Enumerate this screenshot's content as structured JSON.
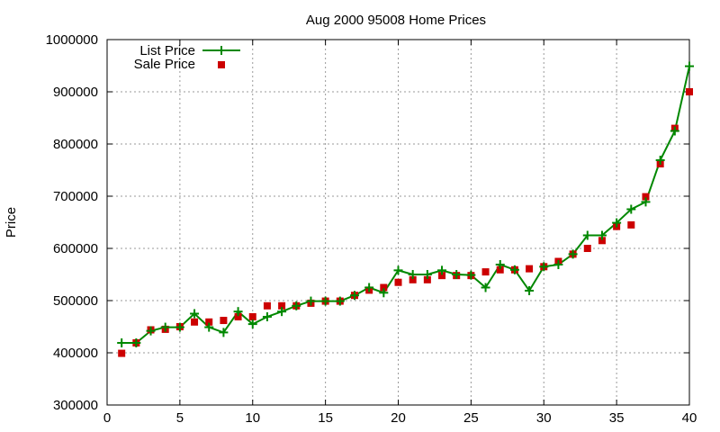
{
  "chart_data": {
    "type": "line",
    "title": "Aug 2000 95008 Home Prices",
    "xlabel": "",
    "ylabel": "Price",
    "xlim": [
      0,
      40
    ],
    "ylim": [
      300000,
      1000000
    ],
    "x_ticks": [
      0,
      5,
      10,
      15,
      20,
      25,
      30,
      35,
      40
    ],
    "x_tick_labels": [
      "0",
      "5",
      "10",
      "15",
      "20",
      "25",
      "30",
      "35",
      "40"
    ],
    "y_ticks": [
      300000,
      400000,
      500000,
      600000,
      700000,
      800000,
      900000,
      1000000
    ],
    "y_tick_labels": [
      "300000",
      "400000",
      "500000",
      "600000",
      "700000",
      "800000",
      "900000",
      "1000000"
    ],
    "grid": true,
    "legend_position": "top-left",
    "x": [
      1,
      2,
      3,
      4,
      5,
      6,
      7,
      8,
      9,
      10,
      11,
      12,
      13,
      14,
      15,
      16,
      17,
      18,
      19,
      20,
      21,
      22,
      23,
      24,
      25,
      26,
      27,
      28,
      29,
      30,
      31,
      32,
      33,
      34,
      35,
      36,
      37,
      38,
      39,
      40
    ],
    "series": [
      {
        "name": "List Price",
        "style": "lines+crosses",
        "color": "#008800",
        "values": [
          419000,
          419000,
          442000,
          449000,
          449000,
          475000,
          449000,
          439000,
          479000,
          455000,
          469000,
          479000,
          490000,
          499000,
          499000,
          499000,
          510000,
          525000,
          515000,
          558000,
          550000,
          550000,
          558000,
          550000,
          549000,
          525000,
          569000,
          559000,
          519000,
          565000,
          569000,
          589000,
          625000,
          625000,
          649000,
          675000,
          689000,
          769000,
          825000,
          949000
        ]
      },
      {
        "name": "Sale Price",
        "style": "squares",
        "color": "#cc0000",
        "values": [
          399000,
          419000,
          444000,
          445000,
          450000,
          459000,
          459000,
          462000,
          469000,
          469000,
          490000,
          490000,
          490000,
          495000,
          499000,
          499000,
          510000,
          520000,
          525000,
          535000,
          540000,
          540000,
          548000,
          548000,
          548000,
          555000,
          559000,
          559000,
          561000,
          565000,
          575000,
          589000,
          600000,
          615000,
          642000,
          645000,
          699000,
          762000,
          830000,
          900000
        ]
      }
    ]
  }
}
